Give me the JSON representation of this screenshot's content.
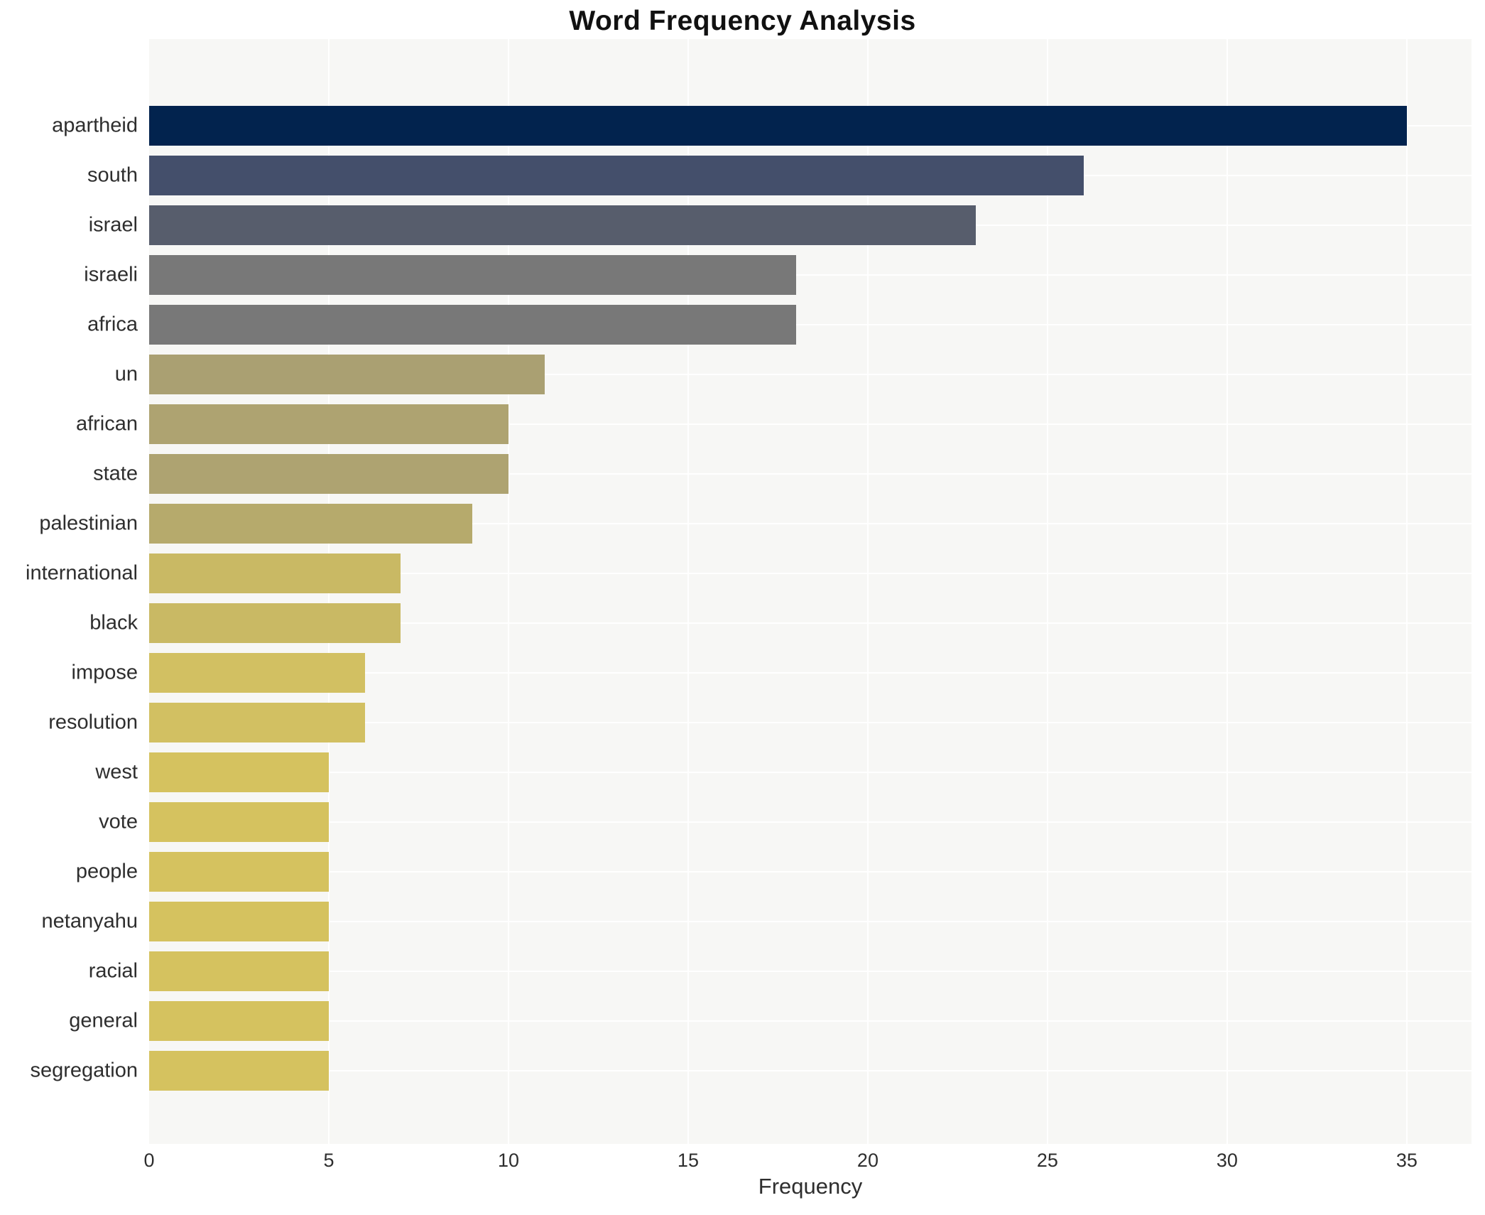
{
  "title": "Word Frequency Analysis",
  "chart_data": {
    "type": "bar",
    "orientation": "horizontal",
    "title": "Word Frequency Analysis",
    "xlabel": "Frequency",
    "ylabel": "",
    "categories": [
      "apartheid",
      "south",
      "israel",
      "israeli",
      "africa",
      "un",
      "african",
      "state",
      "palestinian",
      "international",
      "black",
      "impose",
      "resolution",
      "west",
      "vote",
      "people",
      "netanyahu",
      "racial",
      "general",
      "segregation"
    ],
    "values": [
      35,
      26,
      23,
      18,
      18,
      11,
      10,
      10,
      9,
      7,
      7,
      6,
      6,
      5,
      5,
      5,
      5,
      5,
      5,
      5
    ],
    "bar_colors": [
      "#02234e",
      "#444f6b",
      "#575d6c",
      "#787878",
      "#787878",
      "#aaa072",
      "#aea371",
      "#aea371",
      "#b6aa6c",
      "#c9b964",
      "#c9b964",
      "#d2c062",
      "#d2c062",
      "#d5c25f",
      "#d5c25f",
      "#d5c25f",
      "#d5c25f",
      "#d5c25f",
      "#d5c25f",
      "#d5c25f"
    ],
    "xticks": [
      0,
      5,
      10,
      15,
      20,
      25,
      30,
      35
    ],
    "xlim": [
      0,
      36.8
    ],
    "grid": true,
    "legend": "none",
    "plot_background": "#f7f7f5",
    "grid_color": "#ffffff"
  }
}
